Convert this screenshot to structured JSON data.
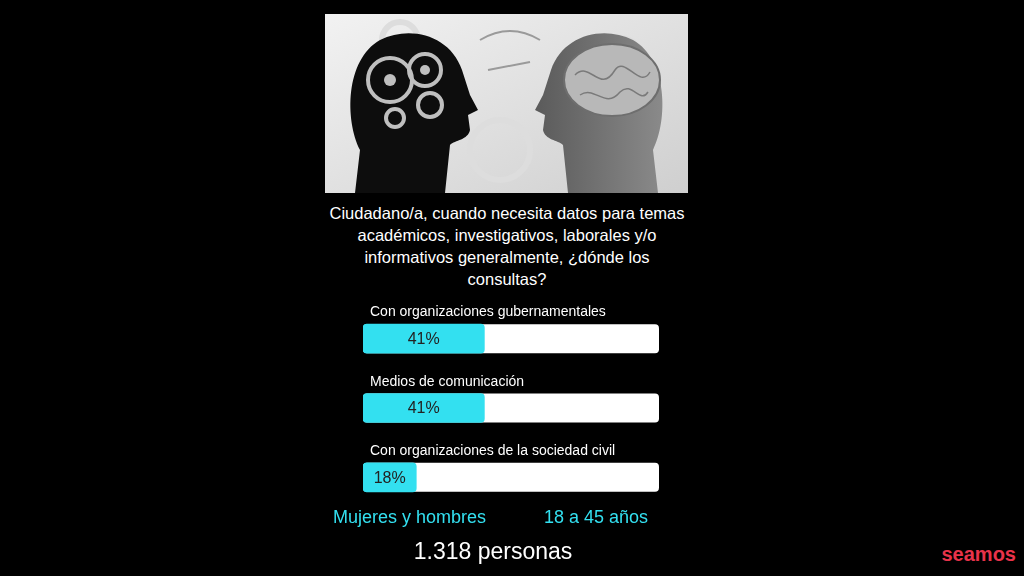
{
  "chart_data": {
    "type": "bar",
    "orientation": "horizontal",
    "title": "Ciudadano/a, cuando necesita datos para temas académicos, investigativos, laborales y/o informativos generalmente, ¿dónde los consultas?",
    "categories": [
      "Con organizaciones gubernamentales",
      "Medios de comunicación",
      "Con organizaciones de la sociedad civil"
    ],
    "values": [
      41,
      41,
      18
    ],
    "value_labels": [
      "41%",
      "41%",
      "18%"
    ],
    "data_labels": true,
    "color": "#33e0f0",
    "xlim": [
      0,
      100
    ],
    "tick_labels": false,
    "grid": false,
    "annotations": [
      "Mujeres y hombres",
      "18 a 45 años",
      "1.318 personas"
    ]
  },
  "logo": "seamos"
}
